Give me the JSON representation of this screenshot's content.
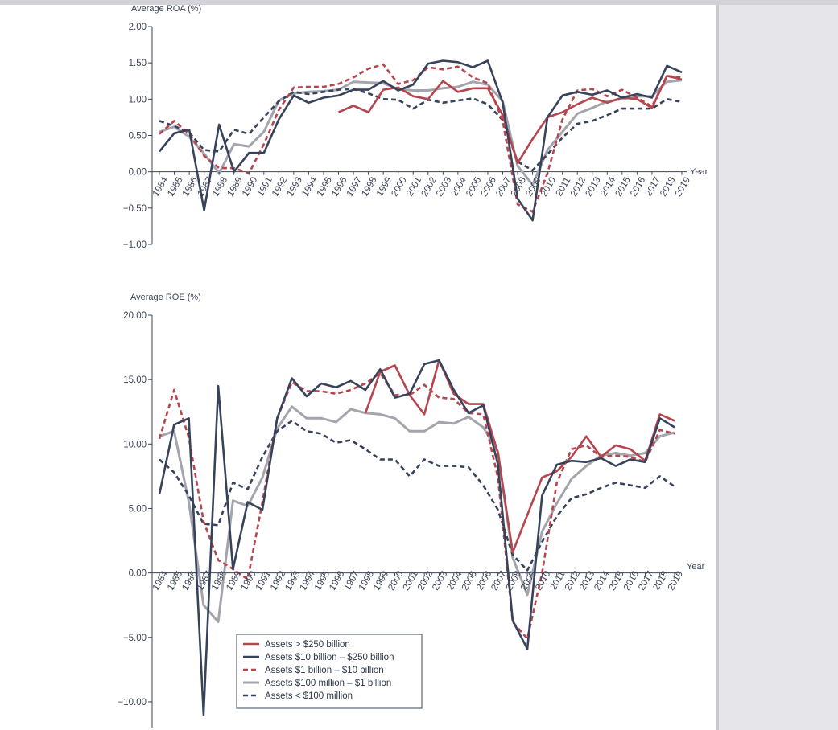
{
  "colors": {
    "red": "#b5454e",
    "navy": "#37435a",
    "gray": "#a4a4ad",
    "axis": "#3b4456"
  },
  "legend": [
    {
      "label": "Assets > $250 billion",
      "color": "#b5454e",
      "dash": false
    },
    {
      "label": "Assets  $10 billion – $250 billion",
      "color": "#37435a",
      "dash": false
    },
    {
      "label": "Assets $1 billion – $10 billion",
      "color": "#b5454e",
      "dash": true
    },
    {
      "label": "Assets $100 million – $1 billion",
      "color": "#a4a4ad",
      "dash": false
    },
    {
      "label": "Assets < $100 million",
      "color": "#37435a",
      "dash": true
    }
  ],
  "chart_data": [
    {
      "type": "line",
      "ylabel": "Average ROA (%)",
      "xlabel": "Year",
      "ylim": [
        -1,
        2
      ],
      "yticks": [
        "2.00",
        "1.50",
        "1.00",
        "0.50",
        "0.00",
        "−0.50",
        "−1.00"
      ],
      "ytick_values": [
        2,
        1.5,
        1,
        0.5,
        0,
        -0.5,
        -1
      ],
      "x": [
        "1984",
        "1985",
        "1986",
        "1987",
        "1988",
        "1989",
        "1990",
        "1991",
        "1992",
        "1993",
        "1994",
        "1995",
        "1996",
        "1997",
        "1998",
        "1999",
        "2000",
        "2001",
        "2002",
        "2003",
        "2004",
        "2005",
        "2006",
        "2007",
        "2008",
        "2009",
        "2010",
        "2011",
        "2012",
        "2013",
        "2014",
        "2015",
        "2016",
        "2017",
        "2018",
        "2019"
      ],
      "series": [
        {
          "name": "Assets > $250 billion",
          "values": [
            null,
            null,
            null,
            null,
            null,
            null,
            null,
            null,
            null,
            null,
            null,
            null,
            0.82,
            0.91,
            0.82,
            1.13,
            1.16,
            1.04,
            1.0,
            1.25,
            1.1,
            1.15,
            1.15,
            0.78,
            0.12,
            0.45,
            0.75,
            0.82,
            0.93,
            1.02,
            0.95,
            1.02,
            1.0,
            0.88,
            1.32,
            1.27
          ]
        },
        {
          "name": "Assets  $10 billion – $250 billion",
          "values": [
            0.28,
            0.53,
            0.58,
            -0.53,
            0.65,
            0.0,
            0.26,
            0.26,
            0.72,
            1.05,
            0.95,
            1.02,
            1.05,
            1.13,
            1.13,
            1.25,
            1.12,
            1.2,
            1.49,
            1.53,
            1.51,
            1.44,
            1.53,
            0.95,
            -0.37,
            -0.67,
            0.75,
            1.05,
            1.1,
            1.06,
            1.12,
            1.02,
            1.07,
            1.02,
            1.46,
            1.37
          ]
        },
        {
          "name": "Assets $1 billion – $10 billion",
          "values": [
            0.52,
            0.7,
            0.52,
            0.22,
            0.05,
            0.05,
            -0.02,
            0.38,
            0.85,
            1.16,
            1.17,
            1.17,
            1.21,
            1.3,
            1.42,
            1.48,
            1.21,
            1.26,
            1.44,
            1.41,
            1.45,
            1.3,
            1.22,
            0.7,
            -0.45,
            -0.55,
            -0.02,
            0.72,
            1.12,
            1.14,
            1.04,
            1.13,
            1.02,
            0.9,
            1.32,
            1.3
          ]
        },
        {
          "name": "Assets $100 million – $1 billion",
          "values": [
            0.55,
            0.62,
            0.48,
            0.25,
            -0.02,
            0.38,
            0.35,
            0.55,
            0.98,
            1.08,
            1.1,
            1.11,
            1.13,
            1.24,
            1.23,
            1.22,
            1.14,
            1.12,
            1.12,
            1.15,
            1.17,
            1.24,
            1.2,
            0.97,
            0.08,
            -0.18,
            0.3,
            0.55,
            0.8,
            0.88,
            0.97,
            1.0,
            1.04,
            1.04,
            1.24,
            1.26
          ]
        },
        {
          "name": "Assets < $100 million",
          "values": [
            0.7,
            0.63,
            0.54,
            0.3,
            0.28,
            0.58,
            0.52,
            0.75,
            0.97,
            1.1,
            1.07,
            1.1,
            1.13,
            1.14,
            1.08,
            1.0,
            0.99,
            0.87,
            0.99,
            0.95,
            0.98,
            1.01,
            0.93,
            0.71,
            0.14,
            0.02,
            0.24,
            0.47,
            0.66,
            0.7,
            0.78,
            0.87,
            0.87,
            0.87,
            1.0,
            0.96
          ]
        }
      ]
    },
    {
      "type": "line",
      "ylabel": "Average ROE (%)",
      "xlabel": "Year",
      "ylim": [
        -12,
        20
      ],
      "yticks": [
        "20.00",
        "15.00",
        "10.00",
        "5.00",
        "0.00",
        "−5.00",
        "−10.00"
      ],
      "ytick_values": [
        20,
        15,
        10,
        5,
        0,
        -5,
        -10
      ],
      "x": [
        "1984",
        "1985",
        "1986",
        "1987",
        "1988",
        "1989",
        "1990",
        "1991",
        "1992",
        "1993",
        "1994",
        "1995",
        "1996",
        "1997",
        "1998",
        "1999",
        "2000",
        "2001",
        "2002",
        "2003",
        "2004",
        "2005",
        "2006",
        "2007",
        "2008",
        "2009",
        "2010",
        "2011",
        "2012",
        "2013",
        "2014",
        "2015",
        "2016",
        "2017",
        "2018",
        "2019"
      ],
      "series": [
        {
          "name": "Assets > $250 billion",
          "values": [
            null,
            null,
            null,
            null,
            null,
            null,
            null,
            null,
            null,
            null,
            null,
            null,
            null,
            null,
            12.4,
            15.6,
            16.1,
            13.8,
            12.3,
            16.5,
            13.9,
            13.1,
            13.1,
            9.3,
            1.6,
            4.5,
            7.4,
            7.9,
            9.0,
            10.6,
            9.0,
            9.9,
            9.6,
            8.7,
            12.3,
            11.8
          ]
        },
        {
          "name": "Assets  $10 billion – $250 billion",
          "values": [
            6.1,
            11.5,
            12.0,
            -11.0,
            14.5,
            0.3,
            5.5,
            4.9,
            12.0,
            15.1,
            13.7,
            14.7,
            14.4,
            14.9,
            14.2,
            15.8,
            13.6,
            13.9,
            16.2,
            16.5,
            14.2,
            12.4,
            13.0,
            8.4,
            -3.7,
            -5.9,
            6.0,
            8.4,
            8.7,
            8.6,
            8.9,
            8.3,
            8.8,
            8.6,
            12.0,
            11.3
          ]
        },
        {
          "name": "Assets $1 billion – $10 billion",
          "values": [
            10.4,
            14.2,
            10.5,
            4.0,
            1.0,
            0.3,
            -0.5,
            5.5,
            12.0,
            14.8,
            14.1,
            14.1,
            13.9,
            14.2,
            14.7,
            15.5,
            13.8,
            13.8,
            14.6,
            13.6,
            13.5,
            12.4,
            12.3,
            7.4,
            -3.8,
            -5.1,
            0.0,
            7.0,
            9.6,
            9.9,
            9.0,
            9.1,
            9.0,
            8.6,
            11.1,
            10.8
          ]
        },
        {
          "name": "Assets $100 million – $1 billion",
          "values": [
            10.6,
            11.0,
            5.5,
            -2.5,
            -3.8,
            5.6,
            5.2,
            7.4,
            11.2,
            12.9,
            12.0,
            12.0,
            11.7,
            12.7,
            12.4,
            12.3,
            12.0,
            11.0,
            11.0,
            11.7,
            11.6,
            12.1,
            11.3,
            9.4,
            1.2,
            -1.7,
            3.2,
            5.4,
            7.3,
            8.3,
            9.1,
            9.3,
            9.1,
            9.3,
            10.6,
            10.9
          ]
        },
        {
          "name": "Assets < $100 million",
          "values": [
            8.8,
            7.8,
            6.0,
            3.8,
            3.7,
            7.0,
            6.5,
            9.0,
            11.0,
            11.8,
            11.0,
            10.8,
            10.1,
            10.3,
            9.6,
            8.8,
            8.8,
            7.5,
            8.8,
            8.3,
            8.3,
            8.2,
            6.8,
            4.9,
            1.4,
            0.2,
            2.4,
            4.4,
            5.8,
            6.1,
            6.6,
            7.0,
            6.8,
            6.6,
            7.5,
            6.7
          ]
        }
      ]
    }
  ]
}
